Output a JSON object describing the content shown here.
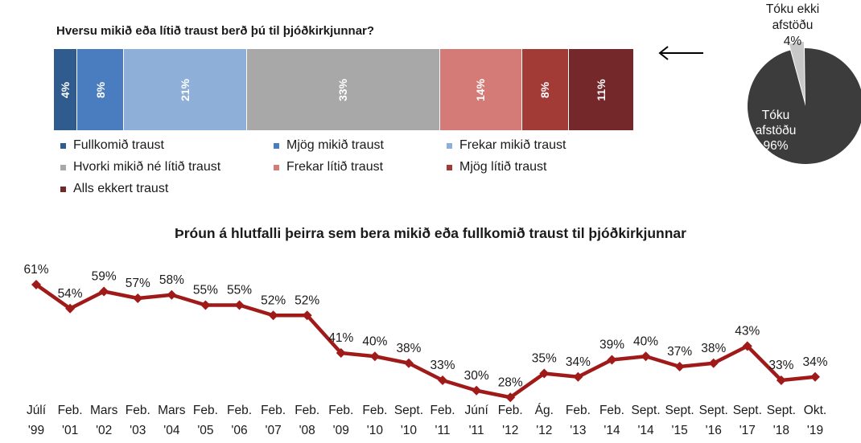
{
  "bar_title": "Hversu mikið eða lítið traust berð þú til þjóðkirkjunnar?",
  "line_title": "Þróun á hlutfalli þeirra sem bera mikið eða fullkomið traust til þjóðkirkjunnar",
  "chart_data": [
    {
      "type": "bar",
      "stacked": true,
      "orientation": "horizontal",
      "title": "Hversu mikið eða lítið traust berð þú til þjóðkirkjunnar?",
      "series": [
        {
          "name": "Fullkomið traust",
          "value": 4,
          "label": "4%",
          "color": "#2f5b8e",
          "text_color": "#ffffff"
        },
        {
          "name": "Mjög mikið traust",
          "value": 8,
          "label": "8%",
          "color": "#4a7dbf",
          "text_color": "#ffffff"
        },
        {
          "name": "Frekar mikið traust",
          "value": 21,
          "label": "21%",
          "color": "#8eb0d8",
          "text_color": "#ffffff"
        },
        {
          "name": "Hvorki mikið né lítið traust",
          "value": 33,
          "label": "33%",
          "color": "#a8a8a8",
          "text_color": "#ffffff"
        },
        {
          "name": "Frekar lítið traust",
          "value": 14,
          "label": "14%",
          "color": "#d47b77",
          "text_color": "#ffffff"
        },
        {
          "name": "Mjög lítið traust",
          "value": 8,
          "label": "8%",
          "color": "#a23a36",
          "text_color": "#ffffff"
        },
        {
          "name": "Alls ekkert traust",
          "value": 11,
          "label": "11%",
          "color": "#74282a",
          "text_color": "#ffffff"
        }
      ],
      "legend": "bottom"
    },
    {
      "type": "pie",
      "slices": [
        {
          "name": "Tóku afstöðu",
          "label_lines": [
            "Tóku",
            "afstöðu",
            "96%"
          ],
          "value": 96,
          "color": "#3c3c3c"
        },
        {
          "name": "Tóku ekki afstöðu",
          "label_lines": [
            "Tóku ekki",
            "afstöðu",
            "4%"
          ],
          "value": 4,
          "color": "#c8c8c8"
        }
      ]
    },
    {
      "type": "line",
      "title": "Þróun á hlutfalli þeirra sem bera mikið eða fullkomið traust til þjóðkirkjunnar",
      "color": "#a01a1a",
      "x": [
        [
          "Júlí",
          "'99"
        ],
        [
          "Feb.",
          "'01"
        ],
        [
          "Mars",
          "'02"
        ],
        [
          "Feb.",
          "'03"
        ],
        [
          "Mars",
          "'04"
        ],
        [
          "Feb.",
          "'05"
        ],
        [
          "Feb.",
          "'06"
        ],
        [
          "Feb.",
          "'07"
        ],
        [
          "Feb.",
          "'08"
        ],
        [
          "Feb.",
          "'09"
        ],
        [
          "Feb.",
          "'10"
        ],
        [
          "Sept.",
          "'10"
        ],
        [
          "Feb.",
          "'11"
        ],
        [
          "Júní",
          "'11"
        ],
        [
          "Feb.",
          "'12"
        ],
        [
          "Ág.",
          "'12"
        ],
        [
          "Feb.",
          "'13"
        ],
        [
          "Feb.",
          "'14"
        ],
        [
          "Sept.",
          "'14"
        ],
        [
          "Sept.",
          "'15"
        ],
        [
          "Sept.",
          "'16"
        ],
        [
          "Sept.",
          "'17"
        ],
        [
          "Sept.",
          "'18"
        ],
        [
          "Okt.",
          "'19"
        ]
      ],
      "values": [
        61,
        54,
        59,
        57,
        58,
        55,
        55,
        52,
        52,
        41,
        40,
        38,
        33,
        30,
        28,
        35,
        34,
        39,
        40,
        37,
        38,
        43,
        33,
        34
      ],
      "labels": [
        "61%",
        "54%",
        "59%",
        "57%",
        "58%",
        "55%",
        "55%",
        "52%",
        "52%",
        "41%",
        "40%",
        "38%",
        "33%",
        "30%",
        "28%",
        "35%",
        "34%",
        "39%",
        "40%",
        "37%",
        "38%",
        "43%",
        "33%",
        "34%"
      ],
      "ylim": [
        0,
        100
      ]
    }
  ]
}
